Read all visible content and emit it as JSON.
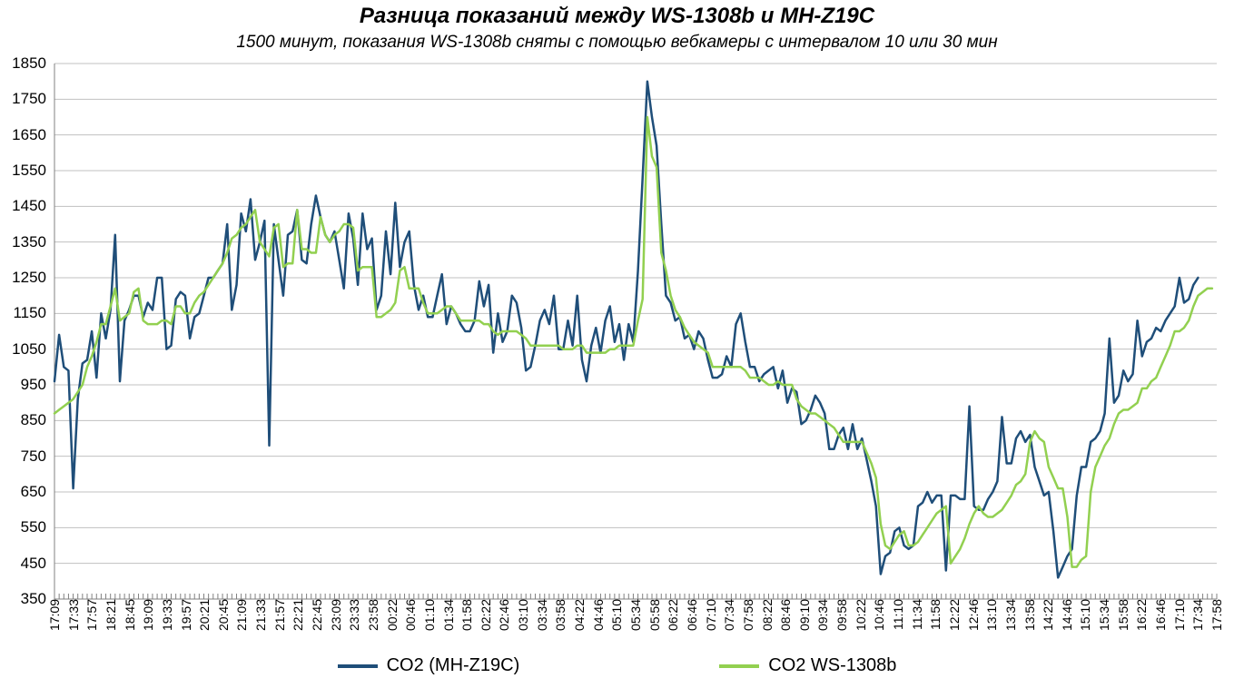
{
  "title": "Разница показаний между WS-1308b и MH-Z19C",
  "subtitle": "1500 минут, показания WS-1308b сняты с помощью вебкамеры с интервалом 10 или 30 мин",
  "chart": {
    "type": "line",
    "ylim": [
      350,
      1850
    ],
    "ytick_step": 100,
    "yticks": [
      350,
      450,
      550,
      650,
      750,
      850,
      950,
      1050,
      1150,
      1250,
      1350,
      1450,
      1550,
      1650,
      1750,
      1850
    ],
    "x_labels": [
      "17:09",
      "17:33",
      "17:57",
      "18:21",
      "18:45",
      "19:09",
      "19:33",
      "19:57",
      "20:21",
      "20:45",
      "21:09",
      "21:33",
      "21:57",
      "22:21",
      "22:45",
      "23:09",
      "23:33",
      "23:58",
      "00:22",
      "00:46",
      "01:10",
      "01:34",
      "01:58",
      "02:22",
      "02:46",
      "03:10",
      "03:34",
      "03:58",
      "04:22",
      "04:46",
      "05:10",
      "05:34",
      "05:58",
      "06:22",
      "06:46",
      "07:10",
      "07:34",
      "07:58",
      "08:22",
      "08:46",
      "09:10",
      "09:34",
      "09:58",
      "10:22",
      "10:46",
      "11:10",
      "11:34",
      "11:58",
      "12:22",
      "12:46",
      "13:10",
      "13:34",
      "13:58",
      "14:22",
      "14:46",
      "15:10",
      "15:34",
      "15:58",
      "16:22",
      "16:46",
      "17:10",
      "17:34",
      "17:58"
    ],
    "x_tick_count": 63,
    "x_count": 250,
    "background_color": "#ffffff",
    "grid_color": "#c0c0c0",
    "axis_color": "#808080",
    "tick_mark_color": "#808080",
    "line_width": 2.5,
    "series": [
      {
        "name": "CO2 (MH-Z19C)",
        "color": "#1f4e79",
        "values": [
          960,
          1090,
          1000,
          990,
          660,
          910,
          1010,
          1020,
          1100,
          970,
          1150,
          1080,
          1160,
          1370,
          960,
          1130,
          1160,
          1200,
          1200,
          1140,
          1180,
          1160,
          1250,
          1250,
          1050,
          1060,
          1190,
          1210,
          1200,
          1080,
          1140,
          1150,
          1200,
          1250,
          1250,
          1270,
          1290,
          1400,
          1160,
          1230,
          1430,
          1380,
          1470,
          1300,
          1350,
          1410,
          780,
          1400,
          1300,
          1200,
          1370,
          1380,
          1440,
          1300,
          1290,
          1400,
          1480,
          1420,
          1370,
          1350,
          1380,
          1300,
          1220,
          1430,
          1360,
          1230,
          1430,
          1330,
          1360,
          1160,
          1200,
          1380,
          1260,
          1460,
          1280,
          1350,
          1380,
          1230,
          1160,
          1200,
          1140,
          1140,
          1200,
          1260,
          1120,
          1170,
          1150,
          1120,
          1100,
          1100,
          1130,
          1240,
          1170,
          1230,
          1040,
          1150,
          1070,
          1100,
          1200,
          1180,
          1110,
          990,
          1000,
          1060,
          1130,
          1160,
          1120,
          1200,
          1050,
          1050,
          1130,
          1060,
          1200,
          1020,
          960,
          1060,
          1110,
          1040,
          1130,
          1170,
          1070,
          1120,
          1020,
          1120,
          1070,
          1270,
          1530,
          1800,
          1700,
          1620,
          1400,
          1200,
          1180,
          1130,
          1140,
          1080,
          1090,
          1050,
          1100,
          1080,
          1020,
          970,
          970,
          980,
          1030,
          1000,
          1120,
          1150,
          1070,
          1000,
          1000,
          960,
          980,
          990,
          1000,
          940,
          990,
          900,
          940,
          930,
          840,
          850,
          880,
          920,
          900,
          870,
          770,
          770,
          810,
          830,
          770,
          840,
          770,
          800,
          740,
          680,
          610,
          420,
          470,
          480,
          540,
          550,
          500,
          490,
          500,
          610,
          620,
          650,
          620,
          640,
          640,
          430,
          640,
          640,
          630,
          630,
          890,
          610,
          600,
          600,
          630,
          650,
          680,
          860,
          730,
          730,
          800,
          820,
          790,
          810,
          720,
          680,
          640,
          650,
          540,
          410,
          440,
          470,
          490,
          640,
          720,
          720,
          790,
          800,
          820,
          870,
          1080,
          900,
          920,
          990,
          960,
          980,
          1130,
          1030,
          1070,
          1080,
          1110,
          1100,
          1130,
          1150,
          1170,
          1250,
          1180,
          1190,
          1230,
          1250
        ]
      },
      {
        "name": "CO2 WS-1308b",
        "color": "#92d050",
        "values": [
          870,
          880,
          890,
          900,
          910,
          930,
          950,
          1000,
          1030,
          1070,
          1120,
          1120,
          1170,
          1220,
          1130,
          1140,
          1150,
          1210,
          1220,
          1130,
          1120,
          1120,
          1120,
          1130,
          1130,
          1120,
          1170,
          1170,
          1150,
          1150,
          1180,
          1200,
          1210,
          1230,
          1250,
          1270,
          1290,
          1320,
          1360,
          1370,
          1390,
          1400,
          1420,
          1440,
          1350,
          1330,
          1310,
          1390,
          1400,
          1280,
          1290,
          1290,
          1440,
          1330,
          1330,
          1320,
          1320,
          1420,
          1370,
          1350,
          1370,
          1380,
          1400,
          1400,
          1390,
          1270,
          1280,
          1280,
          1280,
          1140,
          1140,
          1150,
          1160,
          1180,
          1270,
          1280,
          1220,
          1220,
          1220,
          1180,
          1150,
          1150,
          1150,
          1160,
          1170,
          1170,
          1150,
          1130,
          1130,
          1130,
          1130,
          1130,
          1120,
          1120,
          1100,
          1090,
          1100,
          1100,
          1100,
          1100,
          1090,
          1080,
          1060,
          1060,
          1060,
          1060,
          1060,
          1060,
          1060,
          1050,
          1050,
          1050,
          1060,
          1060,
          1040,
          1040,
          1040,
          1040,
          1040,
          1050,
          1050,
          1060,
          1060,
          1060,
          1060,
          1130,
          1190,
          1700,
          1590,
          1560,
          1320,
          1270,
          1200,
          1160,
          1140,
          1110,
          1090,
          1070,
          1060,
          1050,
          1040,
          1000,
          1000,
          1000,
          1000,
          1000,
          1000,
          1000,
          990,
          970,
          970,
          970,
          960,
          950,
          950,
          960,
          950,
          950,
          950,
          910,
          890,
          880,
          870,
          870,
          860,
          850,
          840,
          830,
          810,
          790,
          790,
          790,
          790,
          790,
          760,
          730,
          690,
          560,
          500,
          490,
          510,
          530,
          540,
          500,
          500,
          510,
          530,
          550,
          570,
          590,
          600,
          610,
          450,
          470,
          490,
          520,
          560,
          590,
          610,
          590,
          580,
          580,
          590,
          600,
          620,
          640,
          670,
          680,
          700,
          790,
          820,
          800,
          790,
          720,
          690,
          660,
          660,
          580,
          440,
          440,
          460,
          470,
          650,
          720,
          750,
          780,
          800,
          840,
          870,
          880,
          880,
          890,
          900,
          940,
          940,
          960,
          970,
          1000,
          1030,
          1060,
          1100,
          1100,
          1110,
          1130,
          1170,
          1200,
          1210,
          1220,
          1220
        ]
      }
    ],
    "title_fontsize": 24,
    "subtitle_fontsize": 19,
    "label_fontsize": 17,
    "xlabel_fontsize": 14,
    "legend_fontsize": 20,
    "aspect_width": 1359,
    "aspect_height": 758
  },
  "legend": {
    "items": [
      {
        "label": "CO2 (MH-Z19C)",
        "color": "#1f4e79"
      },
      {
        "label": "CO2 WS-1308b",
        "color": "#92d050"
      }
    ]
  }
}
